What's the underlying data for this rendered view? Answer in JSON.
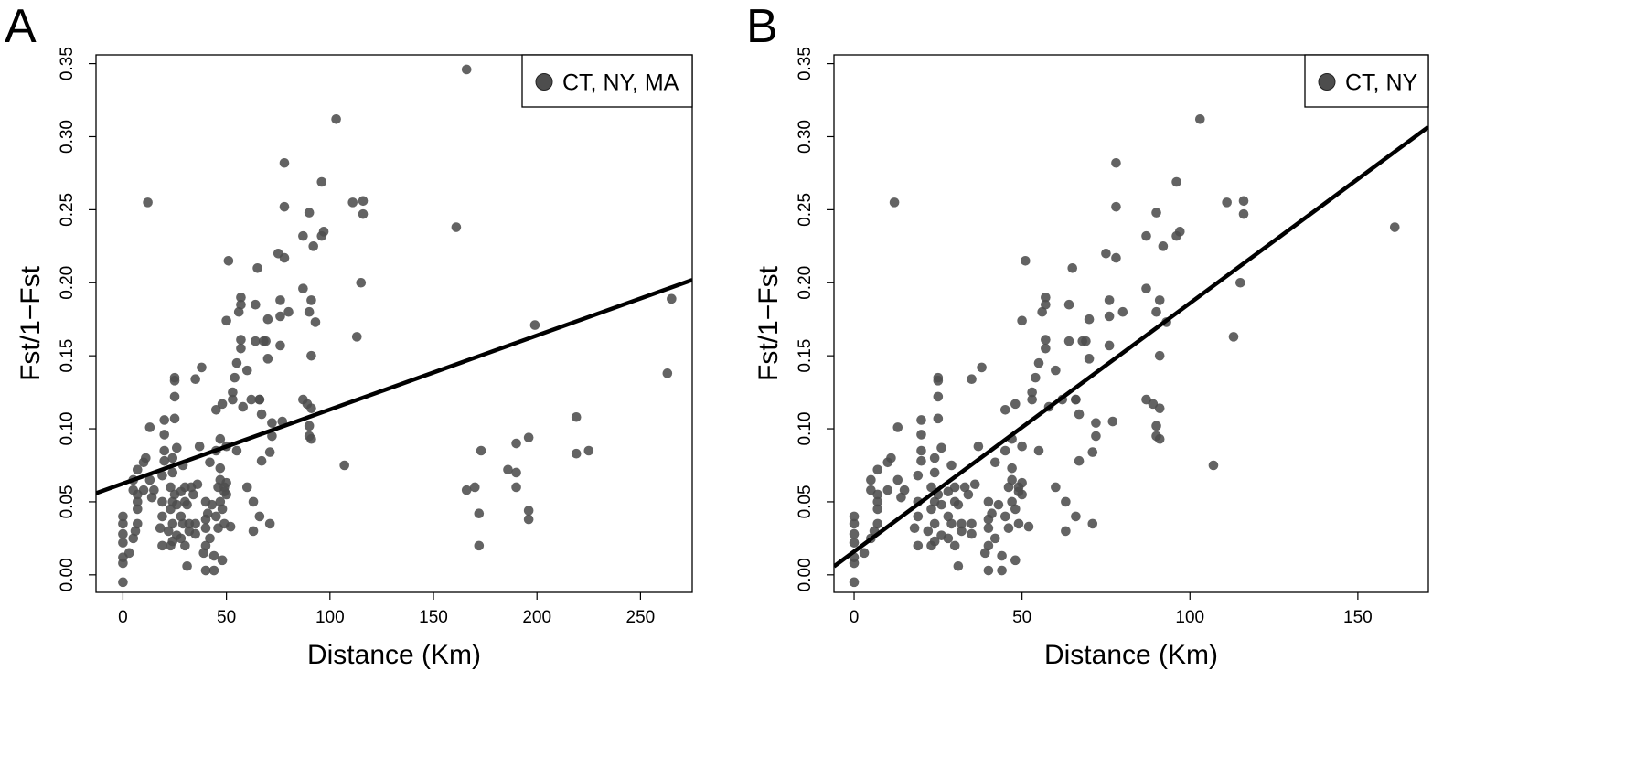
{
  "chart_data": [
    {
      "panel_label": "A",
      "type": "scatter",
      "xlabel": "Distance (Km)",
      "ylabel": "Fst/1−Fst",
      "xlim": [
        -13,
        275
      ],
      "ylim": [
        -0.012,
        0.356
      ],
      "x_ticks": [
        "0",
        "50",
        "100",
        "150",
        "200",
        "250"
      ],
      "y_ticks": [
        "0.00",
        "0.05",
        "0.10",
        "0.15",
        "0.20",
        "0.25",
        "0.30",
        "0.35"
      ],
      "legend": {
        "label": "CT, NY, MA",
        "position": "top-right"
      },
      "point_color": "#4d4d4d",
      "regression_line": {
        "intercept": 0.0625,
        "slope": 0.000507,
        "x_range": [
          -13,
          275
        ]
      },
      "points": [
        [
          0,
          -0.005
        ],
        [
          0,
          0.008
        ],
        [
          0,
          0.012
        ],
        [
          0,
          0.022
        ],
        [
          0,
          0.028
        ],
        [
          0,
          0.035
        ],
        [
          0,
          0.04
        ],
        [
          3,
          0.015
        ],
        [
          5,
          0.025
        ],
        [
          5,
          0.058
        ],
        [
          5,
          0.065
        ],
        [
          6,
          0.03
        ],
        [
          7,
          0.035
        ],
        [
          7,
          0.045
        ],
        [
          7,
          0.05
        ],
        [
          7,
          0.055
        ],
        [
          7,
          0.072
        ],
        [
          10,
          0.058
        ],
        [
          10,
          0.077
        ],
        [
          11,
          0.08
        ],
        [
          12,
          0.255
        ],
        [
          13,
          0.101
        ],
        [
          13,
          0.065
        ],
        [
          14,
          0.053
        ],
        [
          15,
          0.058
        ],
        [
          18,
          0.032
        ],
        [
          19,
          0.02
        ],
        [
          19,
          0.04
        ],
        [
          19,
          0.05
        ],
        [
          19,
          0.068
        ],
        [
          20,
          0.078
        ],
        [
          20,
          0.085
        ],
        [
          20,
          0.096
        ],
        [
          20,
          0.106
        ],
        [
          22,
          0.03
        ],
        [
          23,
          0.02
        ],
        [
          23,
          0.045
        ],
        [
          23,
          0.06
        ],
        [
          24,
          0.023
        ],
        [
          24,
          0.035
        ],
        [
          24,
          0.05
        ],
        [
          24,
          0.07
        ],
        [
          24,
          0.08
        ],
        [
          25,
          0.055
        ],
        [
          25,
          0.107
        ],
        [
          25,
          0.122
        ],
        [
          25,
          0.133
        ],
        [
          25,
          0.135
        ],
        [
          26,
          0.027
        ],
        [
          26,
          0.048
        ],
        [
          26,
          0.087
        ],
        [
          28,
          0.025
        ],
        [
          28,
          0.04
        ],
        [
          28,
          0.057
        ],
        [
          29,
          0.035
        ],
        [
          29,
          0.075
        ],
        [
          30,
          0.02
        ],
        [
          30,
          0.05
        ],
        [
          30,
          0.06
        ],
        [
          31,
          0.006
        ],
        [
          31,
          0.048
        ],
        [
          32,
          0.03
        ],
        [
          32,
          0.035
        ],
        [
          33,
          0.06
        ],
        [
          34,
          0.055
        ],
        [
          35,
          0.028
        ],
        [
          35,
          0.035
        ],
        [
          35,
          0.134
        ],
        [
          36,
          0.062
        ],
        [
          37,
          0.088
        ],
        [
          38,
          0.142
        ],
        [
          39,
          0.015
        ],
        [
          40,
          0.02
        ],
        [
          40,
          0.032
        ],
        [
          40,
          0.038
        ],
        [
          40,
          0.05
        ],
        [
          40,
          0.003
        ],
        [
          41,
          0.042
        ],
        [
          42,
          0.025
        ],
        [
          42,
          0.077
        ],
        [
          43,
          0.048
        ],
        [
          44,
          0.013
        ],
        [
          44,
          0.003
        ],
        [
          45,
          0.04
        ],
        [
          45,
          0.085
        ],
        [
          45,
          0.113
        ],
        [
          46,
          0.032
        ],
        [
          46,
          0.06
        ],
        [
          47,
          0.05
        ],
        [
          47,
          0.065
        ],
        [
          47,
          0.073
        ],
        [
          47,
          0.093
        ],
        [
          48,
          0.01
        ],
        [
          48,
          0.045
        ],
        [
          48,
          0.117
        ],
        [
          49,
          0.035
        ],
        [
          49,
          0.057
        ],
        [
          49,
          0.06
        ],
        [
          50,
          0.055
        ],
        [
          50,
          0.063
        ],
        [
          50,
          0.088
        ],
        [
          50,
          0.174
        ],
        [
          51,
          0.215
        ],
        [
          52,
          0.033
        ],
        [
          53,
          0.12
        ],
        [
          53,
          0.125
        ],
        [
          54,
          0.135
        ],
        [
          55,
          0.145
        ],
        [
          55,
          0.085
        ],
        [
          56,
          0.18
        ],
        [
          57,
          0.155
        ],
        [
          57,
          0.161
        ],
        [
          57,
          0.185
        ],
        [
          57,
          0.19
        ],
        [
          58,
          0.115
        ],
        [
          60,
          0.06
        ],
        [
          60,
          0.14
        ],
        [
          62,
          0.12
        ],
        [
          63,
          0.03
        ],
        [
          63,
          0.05
        ],
        [
          64,
          0.185
        ],
        [
          64,
          0.16
        ],
        [
          65,
          0.21
        ],
        [
          66,
          0.04
        ],
        [
          66,
          0.12
        ],
        [
          66,
          0.12
        ],
        [
          67,
          0.078
        ],
        [
          67,
          0.11
        ],
        [
          68,
          0.16
        ],
        [
          69,
          0.16
        ],
        [
          70,
          0.148
        ],
        [
          70,
          0.175
        ],
        [
          71,
          0.035
        ],
        [
          71,
          0.084
        ],
        [
          72,
          0.095
        ],
        [
          72,
          0.104
        ],
        [
          75,
          0.22
        ],
        [
          76,
          0.177
        ],
        [
          76,
          0.157
        ],
        [
          76,
          0.188
        ],
        [
          77,
          0.105
        ],
        [
          78,
          0.282
        ],
        [
          78,
          0.252
        ],
        [
          78,
          0.217
        ],
        [
          80,
          0.18
        ],
        [
          87,
          0.232
        ],
        [
          87,
          0.12
        ],
        [
          87,
          0.196
        ],
        [
          89,
          0.117
        ],
        [
          90,
          0.095
        ],
        [
          90,
          0.102
        ],
        [
          90,
          0.18
        ],
        [
          90,
          0.248
        ],
        [
          91,
          0.114
        ],
        [
          91,
          0.15
        ],
        [
          91,
          0.188
        ],
        [
          91,
          0.093
        ],
        [
          92,
          0.225
        ],
        [
          93,
          0.173
        ],
        [
          96,
          0.232
        ],
        [
          96,
          0.269
        ],
        [
          97,
          0.235
        ],
        [
          103,
          0.312
        ],
        [
          107,
          0.075
        ],
        [
          111,
          0.255
        ],
        [
          113,
          0.163
        ],
        [
          115,
          0.2
        ],
        [
          116,
          0.247
        ],
        [
          116,
          0.256
        ],
        [
          161,
          0.238
        ],
        [
          166,
          0.346
        ],
        [
          166,
          0.058
        ],
        [
          170,
          0.06
        ],
        [
          172,
          0.042
        ],
        [
          172,
          0.02
        ],
        [
          173,
          0.085
        ],
        [
          186,
          0.072
        ],
        [
          190,
          0.07
        ],
        [
          190,
          0.06
        ],
        [
          190,
          0.09
        ],
        [
          196,
          0.094
        ],
        [
          196,
          0.044
        ],
        [
          196,
          0.038
        ],
        [
          199,
          0.171
        ],
        [
          219,
          0.108
        ],
        [
          219,
          0.083
        ],
        [
          225,
          0.085
        ],
        [
          263,
          0.138
        ],
        [
          265,
          0.189
        ]
      ]
    },
    {
      "panel_label": "B",
      "type": "scatter",
      "xlabel": "Distance (Km)",
      "ylabel": "Fst/1−Fst",
      "xlim": [
        -6,
        171
      ],
      "ylim": [
        -0.012,
        0.356
      ],
      "x_ticks": [
        "0",
        "50",
        "100",
        "150"
      ],
      "y_ticks": [
        "0.00",
        "0.05",
        "0.10",
        "0.15",
        "0.20",
        "0.25",
        "0.30",
        "0.35"
      ],
      "legend": {
        "label": "CT, NY",
        "position": "top-right"
      },
      "point_color": "#4d4d4d",
      "regression_line": {
        "intercept": 0.016,
        "slope": 0.0017,
        "x_range": [
          -6,
          171
        ]
      },
      "points": [
        [
          0,
          -0.005
        ],
        [
          0,
          0.008
        ],
        [
          0,
          0.012
        ],
        [
          0,
          0.022
        ],
        [
          0,
          0.028
        ],
        [
          0,
          0.035
        ],
        [
          0,
          0.04
        ],
        [
          3,
          0.015
        ],
        [
          5,
          0.025
        ],
        [
          5,
          0.058
        ],
        [
          5,
          0.065
        ],
        [
          6,
          0.03
        ],
        [
          7,
          0.035
        ],
        [
          7,
          0.045
        ],
        [
          7,
          0.05
        ],
        [
          7,
          0.055
        ],
        [
          7,
          0.072
        ],
        [
          10,
          0.058
        ],
        [
          10,
          0.077
        ],
        [
          11,
          0.08
        ],
        [
          12,
          0.255
        ],
        [
          13,
          0.101
        ],
        [
          13,
          0.065
        ],
        [
          14,
          0.053
        ],
        [
          15,
          0.058
        ],
        [
          18,
          0.032
        ],
        [
          19,
          0.02
        ],
        [
          19,
          0.04
        ],
        [
          19,
          0.05
        ],
        [
          19,
          0.068
        ],
        [
          20,
          0.078
        ],
        [
          20,
          0.085
        ],
        [
          20,
          0.096
        ],
        [
          20,
          0.106
        ],
        [
          22,
          0.03
        ],
        [
          23,
          0.02
        ],
        [
          23,
          0.045
        ],
        [
          23,
          0.06
        ],
        [
          24,
          0.023
        ],
        [
          24,
          0.035
        ],
        [
          24,
          0.05
        ],
        [
          24,
          0.07
        ],
        [
          24,
          0.08
        ],
        [
          25,
          0.055
        ],
        [
          25,
          0.107
        ],
        [
          25,
          0.122
        ],
        [
          25,
          0.133
        ],
        [
          25,
          0.135
        ],
        [
          26,
          0.027
        ],
        [
          26,
          0.048
        ],
        [
          26,
          0.087
        ],
        [
          28,
          0.025
        ],
        [
          28,
          0.04
        ],
        [
          28,
          0.057
        ],
        [
          29,
          0.035
        ],
        [
          29,
          0.075
        ],
        [
          30,
          0.02
        ],
        [
          30,
          0.05
        ],
        [
          30,
          0.06
        ],
        [
          31,
          0.006
        ],
        [
          31,
          0.048
        ],
        [
          32,
          0.03
        ],
        [
          32,
          0.035
        ],
        [
          33,
          0.06
        ],
        [
          34,
          0.055
        ],
        [
          35,
          0.028
        ],
        [
          35,
          0.035
        ],
        [
          35,
          0.134
        ],
        [
          36,
          0.062
        ],
        [
          37,
          0.088
        ],
        [
          38,
          0.142
        ],
        [
          39,
          0.015
        ],
        [
          40,
          0.02
        ],
        [
          40,
          0.032
        ],
        [
          40,
          0.038
        ],
        [
          40,
          0.05
        ],
        [
          40,
          0.003
        ],
        [
          41,
          0.042
        ],
        [
          42,
          0.025
        ],
        [
          42,
          0.077
        ],
        [
          43,
          0.048
        ],
        [
          44,
          0.013
        ],
        [
          44,
          0.003
        ],
        [
          45,
          0.04
        ],
        [
          45,
          0.085
        ],
        [
          45,
          0.113
        ],
        [
          46,
          0.032
        ],
        [
          46,
          0.06
        ],
        [
          47,
          0.05
        ],
        [
          47,
          0.065
        ],
        [
          47,
          0.073
        ],
        [
          47,
          0.093
        ],
        [
          48,
          0.01
        ],
        [
          48,
          0.045
        ],
        [
          48,
          0.117
        ],
        [
          49,
          0.035
        ],
        [
          49,
          0.057
        ],
        [
          49,
          0.06
        ],
        [
          50,
          0.055
        ],
        [
          50,
          0.063
        ],
        [
          50,
          0.088
        ],
        [
          50,
          0.174
        ],
        [
          51,
          0.215
        ],
        [
          52,
          0.033
        ],
        [
          53,
          0.12
        ],
        [
          53,
          0.125
        ],
        [
          54,
          0.135
        ],
        [
          55,
          0.145
        ],
        [
          55,
          0.085
        ],
        [
          56,
          0.18
        ],
        [
          57,
          0.155
        ],
        [
          57,
          0.161
        ],
        [
          57,
          0.185
        ],
        [
          57,
          0.19
        ],
        [
          58,
          0.115
        ],
        [
          60,
          0.06
        ],
        [
          60,
          0.14
        ],
        [
          62,
          0.12
        ],
        [
          63,
          0.03
        ],
        [
          63,
          0.05
        ],
        [
          64,
          0.185
        ],
        [
          64,
          0.16
        ],
        [
          65,
          0.21
        ],
        [
          66,
          0.04
        ],
        [
          66,
          0.12
        ],
        [
          66,
          0.12
        ],
        [
          67,
          0.078
        ],
        [
          67,
          0.11
        ],
        [
          68,
          0.16
        ],
        [
          69,
          0.16
        ],
        [
          70,
          0.148
        ],
        [
          70,
          0.175
        ],
        [
          71,
          0.035
        ],
        [
          71,
          0.084
        ],
        [
          72,
          0.095
        ],
        [
          72,
          0.104
        ],
        [
          75,
          0.22
        ],
        [
          76,
          0.177
        ],
        [
          76,
          0.157
        ],
        [
          76,
          0.188
        ],
        [
          77,
          0.105
        ],
        [
          78,
          0.282
        ],
        [
          78,
          0.252
        ],
        [
          78,
          0.217
        ],
        [
          80,
          0.18
        ],
        [
          87,
          0.232
        ],
        [
          87,
          0.12
        ],
        [
          87,
          0.196
        ],
        [
          89,
          0.117
        ],
        [
          90,
          0.095
        ],
        [
          90,
          0.102
        ],
        [
          90,
          0.18
        ],
        [
          90,
          0.248
        ],
        [
          91,
          0.114
        ],
        [
          91,
          0.15
        ],
        [
          91,
          0.188
        ],
        [
          91,
          0.093
        ],
        [
          92,
          0.225
        ],
        [
          93,
          0.173
        ],
        [
          96,
          0.232
        ],
        [
          96,
          0.269
        ],
        [
          97,
          0.235
        ],
        [
          103,
          0.312
        ],
        [
          107,
          0.075
        ],
        [
          111,
          0.255
        ],
        [
          113,
          0.163
        ],
        [
          115,
          0.2
        ],
        [
          116,
          0.247
        ],
        [
          116,
          0.256
        ],
        [
          161,
          0.238
        ]
      ]
    }
  ]
}
